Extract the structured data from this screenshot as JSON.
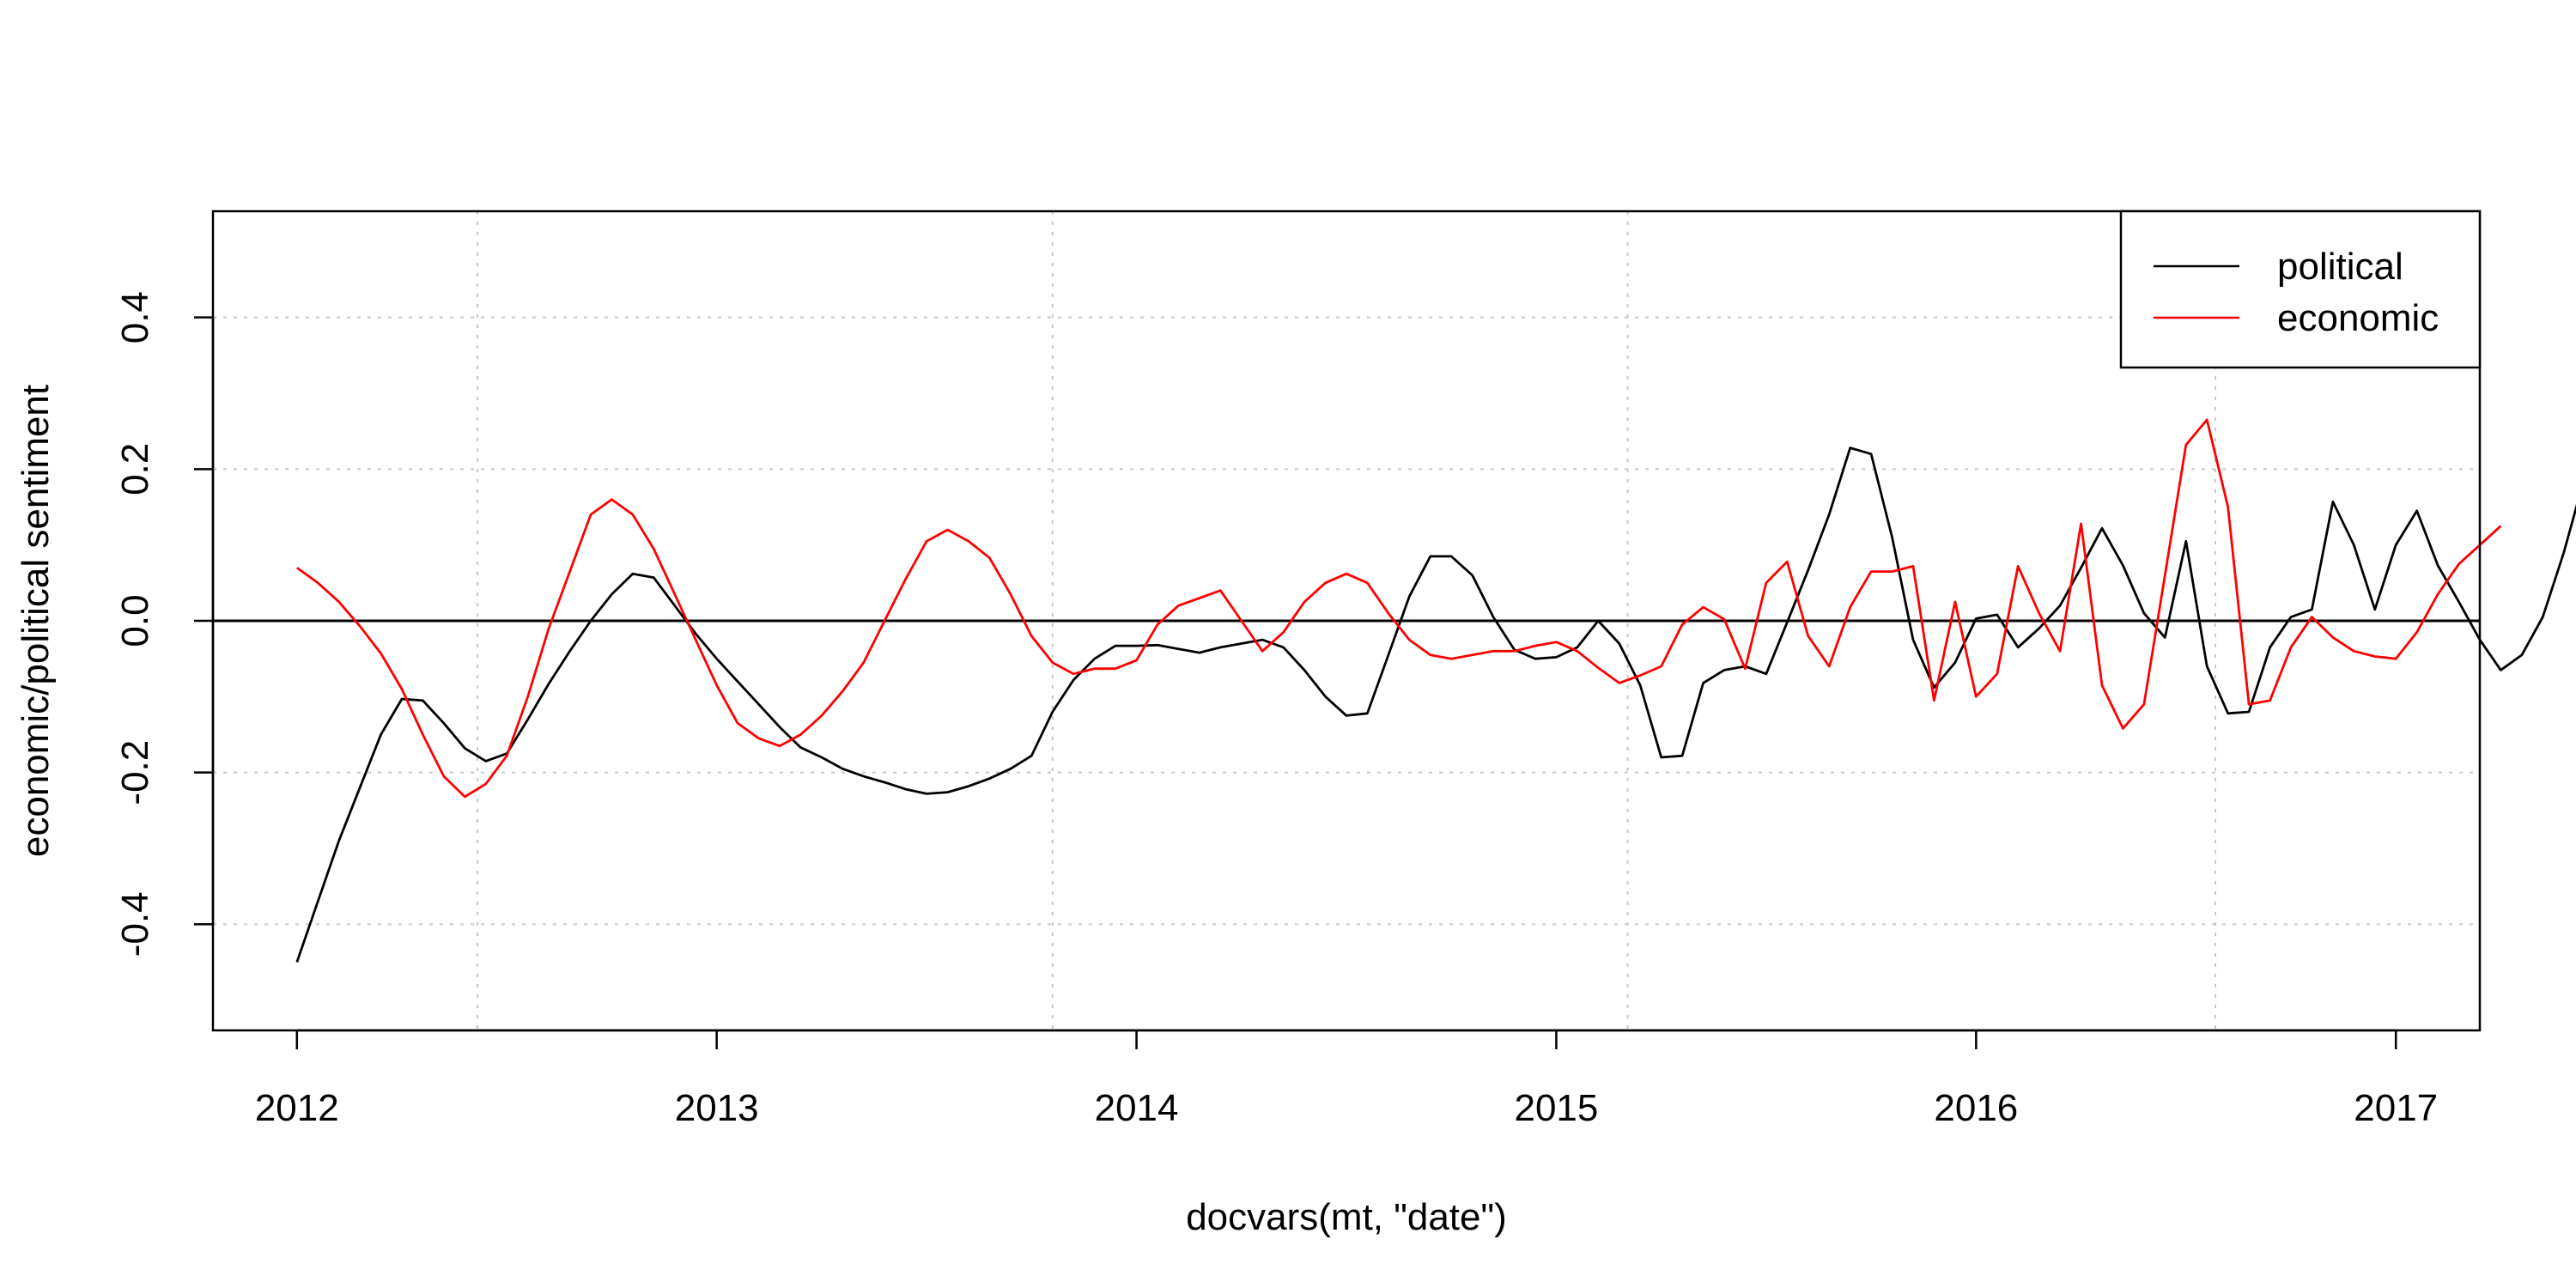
{
  "chart_data": {
    "type": "line",
    "xlabel": "docvars(mt, \"date\")",
    "ylabel": "economic/political sentiment",
    "xlim": [
      2011.8,
      2017.2
    ],
    "ylim": [
      -0.54,
      0.54
    ],
    "x_ticks": [
      {
        "value": 2012,
        "label": "2012"
      },
      {
        "value": 2013,
        "label": "2013"
      },
      {
        "value": 2014,
        "label": "2014"
      },
      {
        "value": 2015,
        "label": "2015"
      },
      {
        "value": 2016,
        "label": "2016"
      },
      {
        "value": 2017,
        "label": "2017"
      }
    ],
    "y_ticks": [
      {
        "value": -0.4,
        "label": "-0.4"
      },
      {
        "value": -0.2,
        "label": "-0.2"
      },
      {
        "value": 0.0,
        "label": "0.0"
      },
      {
        "value": 0.2,
        "label": "0.2"
      },
      {
        "value": 0.4,
        "label": "0.4"
      }
    ],
    "grid": true,
    "grid_x": [
      2012.43,
      2013.8,
      2015.17,
      2016.57
    ],
    "hline": 0,
    "legend": {
      "position": "top-right"
    },
    "series": [
      {
        "name": "political",
        "color": "#000000",
        "points": [
          [
            2012.0,
            -0.45
          ],
          [
            2012.05,
            -0.37
          ],
          [
            2012.1,
            -0.29
          ],
          [
            2012.15,
            -0.22
          ],
          [
            2012.2,
            -0.15
          ],
          [
            2012.25,
            -0.103
          ],
          [
            2012.3,
            -0.105
          ],
          [
            2012.35,
            -0.135
          ],
          [
            2012.4,
            -0.168
          ],
          [
            2012.45,
            -0.185
          ],
          [
            2012.5,
            -0.175
          ],
          [
            2012.55,
            -0.13
          ],
          [
            2012.6,
            -0.083
          ],
          [
            2012.65,
            -0.04
          ],
          [
            2012.7,
            0.0
          ],
          [
            2012.75,
            0.035
          ],
          [
            2012.8,
            0.062
          ],
          [
            2012.85,
            0.057
          ],
          [
            2012.9,
            0.02
          ],
          [
            2012.95,
            -0.017
          ],
          [
            2013.0,
            -0.05
          ],
          [
            2013.05,
            -0.08
          ],
          [
            2013.1,
            -0.11
          ],
          [
            2013.15,
            -0.14
          ],
          [
            2013.2,
            -0.167
          ],
          [
            2013.25,
            -0.18
          ],
          [
            2013.3,
            -0.195
          ],
          [
            2013.35,
            -0.205
          ],
          [
            2013.4,
            -0.213
          ],
          [
            2013.45,
            -0.222
          ],
          [
            2013.5,
            -0.228
          ],
          [
            2013.55,
            -0.226
          ],
          [
            2013.6,
            -0.218
          ],
          [
            2013.65,
            -0.208
          ],
          [
            2013.7,
            -0.195
          ],
          [
            2013.75,
            -0.178
          ],
          [
            2013.8,
            -0.12
          ],
          [
            2013.85,
            -0.078
          ],
          [
            2013.9,
            -0.05
          ],
          [
            2013.95,
            -0.033
          ],
          [
            2014.0,
            -0.033
          ],
          [
            2014.05,
            -0.032
          ],
          [
            2014.1,
            -0.037
          ],
          [
            2014.15,
            -0.042
          ],
          [
            2014.2,
            -0.035
          ],
          [
            2014.25,
            -0.03
          ],
          [
            2014.3,
            -0.025
          ],
          [
            2014.35,
            -0.035
          ],
          [
            2014.4,
            -0.065
          ],
          [
            2014.45,
            -0.1
          ],
          [
            2014.5,
            -0.125
          ],
          [
            2014.55,
            -0.122
          ],
          [
            2014.6,
            -0.045
          ],
          [
            2014.65,
            0.032
          ],
          [
            2014.7,
            0.085
          ],
          [
            2014.75,
            0.085
          ],
          [
            2014.8,
            0.06
          ],
          [
            2014.85,
            0.005
          ],
          [
            2014.9,
            -0.038
          ],
          [
            2014.95,
            -0.05
          ],
          [
            2015.0,
            -0.048
          ],
          [
            2015.05,
            -0.035
          ],
          [
            2015.1,
            0.0
          ],
          [
            2015.15,
            -0.03
          ],
          [
            2015.2,
            -0.085
          ],
          [
            2015.25,
            -0.18
          ],
          [
            2015.3,
            -0.178
          ],
          [
            2015.35,
            -0.082
          ],
          [
            2015.4,
            -0.065
          ],
          [
            2015.45,
            -0.06
          ],
          [
            2015.5,
            -0.07
          ],
          [
            2015.55,
            -0.002
          ],
          [
            2015.6,
            0.067
          ],
          [
            2015.65,
            0.14
          ],
          [
            2015.7,
            0.228
          ],
          [
            2015.75,
            0.22
          ],
          [
            2015.8,
            0.11
          ],
          [
            2015.85,
            -0.025
          ],
          [
            2015.9,
            -0.088
          ],
          [
            2015.95,
            -0.055
          ],
          [
            2016.0,
            0.003
          ],
          [
            2016.05,
            0.008
          ],
          [
            2016.1,
            -0.035
          ],
          [
            2016.15,
            -0.01
          ],
          [
            2016.2,
            0.02
          ],
          [
            2016.25,
            0.07
          ],
          [
            2016.3,
            0.122
          ],
          [
            2016.35,
            0.073
          ],
          [
            2016.4,
            0.01
          ],
          [
            2016.45,
            -0.022
          ],
          [
            2016.5,
            0.105
          ],
          [
            2016.55,
            -0.06
          ],
          [
            2016.6,
            -0.122
          ],
          [
            2016.65,
            -0.12
          ],
          [
            2016.7,
            -0.035
          ],
          [
            2016.75,
            0.005
          ],
          [
            2016.8,
            0.015
          ],
          [
            2016.85,
            0.157
          ],
          [
            2016.9,
            0.1
          ],
          [
            2016.95,
            0.015
          ],
          [
            2017.0,
            0.1
          ],
          [
            2017.05,
            0.145
          ],
          [
            2017.1,
            0.073
          ],
          [
            2017.15,
            0.025
          ],
          [
            2017.2,
            -0.025
          ],
          [
            2017.25,
            -0.065
          ],
          [
            2017.3,
            -0.045
          ],
          [
            2017.35,
            0.005
          ],
          [
            2017.4,
            0.09
          ],
          [
            2017.45,
            0.19
          ]
        ]
      },
      {
        "name": "economic",
        "color": "#ff0000",
        "points": [
          [
            2012.0,
            0.07
          ],
          [
            2012.05,
            0.05
          ],
          [
            2012.1,
            0.025
          ],
          [
            2012.15,
            -0.007
          ],
          [
            2012.2,
            -0.043
          ],
          [
            2012.25,
            -0.09
          ],
          [
            2012.3,
            -0.15
          ],
          [
            2012.35,
            -0.205
          ],
          [
            2012.4,
            -0.232
          ],
          [
            2012.45,
            -0.215
          ],
          [
            2012.5,
            -0.178
          ],
          [
            2012.55,
            -0.1
          ],
          [
            2012.6,
            -0.01
          ],
          [
            2012.65,
            0.065
          ],
          [
            2012.7,
            0.14
          ],
          [
            2012.75,
            0.16
          ],
          [
            2012.8,
            0.14
          ],
          [
            2012.85,
            0.095
          ],
          [
            2012.9,
            0.035
          ],
          [
            2012.95,
            -0.025
          ],
          [
            2013.0,
            -0.085
          ],
          [
            2013.05,
            -0.135
          ],
          [
            2013.1,
            -0.155
          ],
          [
            2013.15,
            -0.165
          ],
          [
            2013.2,
            -0.15
          ],
          [
            2013.25,
            -0.125
          ],
          [
            2013.3,
            -0.093
          ],
          [
            2013.35,
            -0.055
          ],
          [
            2013.4,
            0.0
          ],
          [
            2013.45,
            0.055
          ],
          [
            2013.5,
            0.105
          ],
          [
            2013.55,
            0.12
          ],
          [
            2013.6,
            0.105
          ],
          [
            2013.65,
            0.083
          ],
          [
            2013.7,
            0.035
          ],
          [
            2013.75,
            -0.02
          ],
          [
            2013.8,
            -0.055
          ],
          [
            2013.85,
            -0.07
          ],
          [
            2013.9,
            -0.063
          ],
          [
            2013.95,
            -0.063
          ],
          [
            2014.0,
            -0.052
          ],
          [
            2014.05,
            -0.005
          ],
          [
            2014.1,
            0.02
          ],
          [
            2014.15,
            0.03
          ],
          [
            2014.2,
            0.04
          ],
          [
            2014.25,
            0.0
          ],
          [
            2014.3,
            -0.04
          ],
          [
            2014.35,
            -0.015
          ],
          [
            2014.4,
            0.025
          ],
          [
            2014.45,
            0.05
          ],
          [
            2014.5,
            0.062
          ],
          [
            2014.55,
            0.05
          ],
          [
            2014.6,
            0.01
          ],
          [
            2014.65,
            -0.025
          ],
          [
            2014.7,
            -0.045
          ],
          [
            2014.75,
            -0.05
          ],
          [
            2014.8,
            -0.045
          ],
          [
            2014.85,
            -0.04
          ],
          [
            2014.9,
            -0.04
          ],
          [
            2014.95,
            -0.033
          ],
          [
            2015.0,
            -0.028
          ],
          [
            2015.05,
            -0.04
          ],
          [
            2015.1,
            -0.062
          ],
          [
            2015.15,
            -0.082
          ],
          [
            2015.2,
            -0.072
          ],
          [
            2015.25,
            -0.06
          ],
          [
            2015.3,
            -0.005
          ],
          [
            2015.35,
            0.018
          ],
          [
            2015.4,
            0.002
          ],
          [
            2015.45,
            -0.063
          ],
          [
            2015.5,
            0.05
          ],
          [
            2015.55,
            0.078
          ],
          [
            2015.6,
            -0.02
          ],
          [
            2015.65,
            -0.06
          ],
          [
            2015.7,
            0.018
          ],
          [
            2015.75,
            0.065
          ],
          [
            2015.8,
            0.065
          ],
          [
            2015.85,
            0.072
          ],
          [
            2015.9,
            -0.105
          ],
          [
            2015.95,
            0.025
          ],
          [
            2016.0,
            -0.1
          ],
          [
            2016.05,
            -0.07
          ],
          [
            2016.1,
            0.072
          ],
          [
            2016.15,
            0.01
          ],
          [
            2016.2,
            -0.04
          ],
          [
            2016.25,
            0.128
          ],
          [
            2016.3,
            -0.085
          ],
          [
            2016.35,
            -0.142
          ],
          [
            2016.4,
            -0.11
          ],
          [
            2016.45,
            0.06
          ],
          [
            2016.5,
            0.232
          ],
          [
            2016.55,
            0.265
          ],
          [
            2016.6,
            0.15
          ],
          [
            2016.65,
            -0.11
          ],
          [
            2016.7,
            -0.105
          ],
          [
            2016.75,
            -0.035
          ],
          [
            2016.8,
            0.005
          ],
          [
            2016.85,
            -0.022
          ],
          [
            2016.9,
            -0.04
          ],
          [
            2016.95,
            -0.047
          ],
          [
            2017.0,
            -0.05
          ],
          [
            2017.05,
            -0.015
          ],
          [
            2017.1,
            0.035
          ],
          [
            2017.15,
            0.075
          ],
          [
            2017.2,
            0.1
          ],
          [
            2017.25,
            0.125
          ]
        ]
      }
    ]
  }
}
